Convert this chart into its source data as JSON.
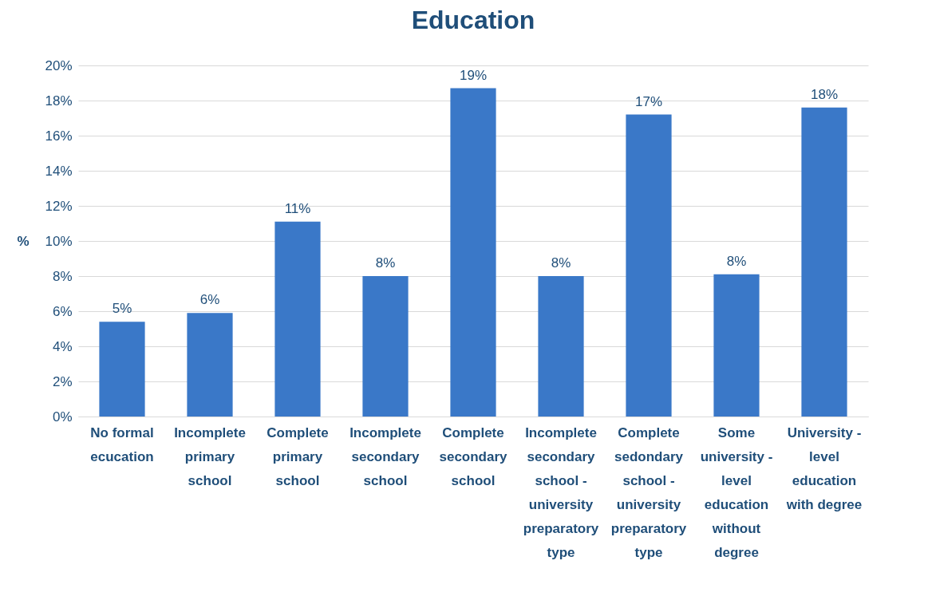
{
  "chart_data": {
    "type": "bar",
    "title": "Education",
    "ylabel": "%",
    "categories": [
      "No formal ecucation",
      "Incomplete primary school",
      "Complete primary school",
      "Incomplete secondary school",
      "Complete secondary school",
      "Incomplete secondary school - university preparatory type",
      "Complete sedondary school - university preparatory type",
      "Some university - level education without degree",
      "University - level education with degree"
    ],
    "values": [
      5.4,
      5.9,
      11.1,
      8.0,
      18.7,
      8.0,
      17.2,
      8.1,
      17.6
    ],
    "value_labels": [
      "5%",
      "6%",
      "11%",
      "8%",
      "19%",
      "8%",
      "17%",
      "8%",
      "18%"
    ],
    "color": "#3a78c8",
    "ylim": [
      0,
      20
    ],
    "yticks": [
      {
        "value": 0,
        "label": "0%"
      },
      {
        "value": 2,
        "label": "2%"
      },
      {
        "value": 4,
        "label": "4%"
      },
      {
        "value": 6,
        "label": "6%"
      },
      {
        "value": 8,
        "label": "8%"
      },
      {
        "value": 10,
        "label": "10%"
      },
      {
        "value": 12,
        "label": "12%"
      },
      {
        "value": 14,
        "label": "14%"
      },
      {
        "value": 16,
        "label": "16%"
      },
      {
        "value": 18,
        "label": "18%"
      },
      {
        "value": 20,
        "label": "20%"
      }
    ],
    "grid": "y"
  }
}
